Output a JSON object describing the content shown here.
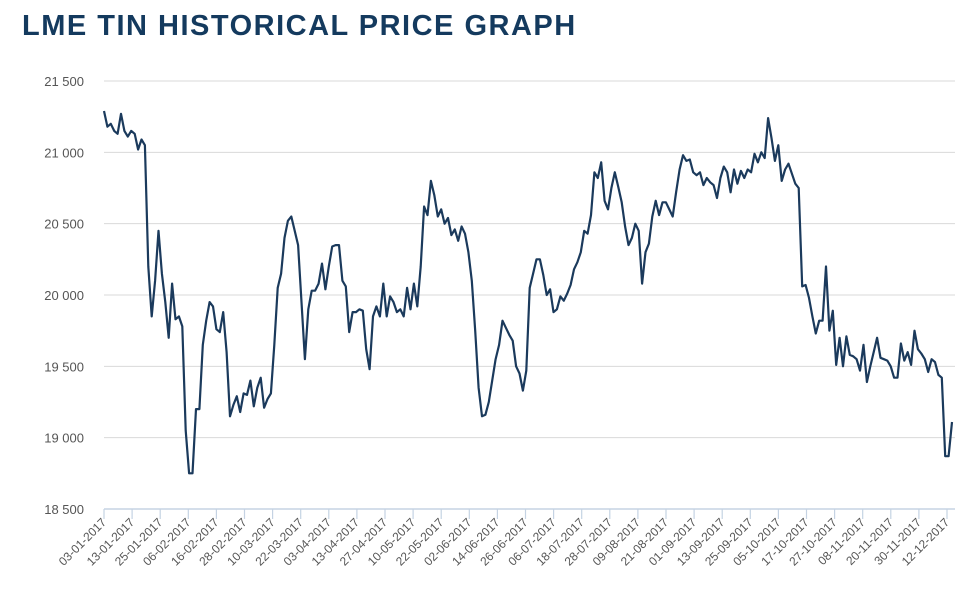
{
  "title": "LME TIN HISTORICAL PRICE GRAPH",
  "chart_data": {
    "type": "line",
    "title": "LME TIN HISTORICAL PRICE GRAPH",
    "xlabel": "",
    "ylabel": "",
    "ylim": [
      18500,
      21500
    ],
    "yticks": [
      18500,
      19000,
      19500,
      20000,
      20500,
      21000,
      21500
    ],
    "ytick_labels": [
      "18 500",
      "19 000",
      "19 500",
      "20 000",
      "20 500",
      "21 000",
      "21 500"
    ],
    "xtick_labels": [
      "03-01-2017",
      "13-01-2017",
      "25-01-2017",
      "06-02-2017",
      "16-02-2017",
      "28-02-2017",
      "10-03-2017",
      "22-03-2017",
      "03-04-2017",
      "13-04-2017",
      "27-04-2017",
      "10-05-2017",
      "22-05-2017",
      "02-06-2017",
      "14-06-2017",
      "26-06-2017",
      "06-07-2017",
      "18-07-2017",
      "28-07-2017",
      "09-08-2017",
      "21-08-2017",
      "01-09-2017",
      "13-09-2017",
      "25-09-2017",
      "05-10-2017",
      "17-10-2017",
      "27-10-2017",
      "08-11-2017",
      "20-11-2017",
      "30-11-2017",
      "12-12-2017"
    ],
    "grid": true,
    "legend": "none",
    "line_color": "#1b3a5c",
    "series": [
      {
        "name": "LME Tin",
        "values": [
          21290,
          21180,
          21200,
          21150,
          21130,
          21270,
          21150,
          21110,
          21150,
          21130,
          21020,
          21090,
          21050,
          20200,
          19850,
          20100,
          20450,
          20150,
          19950,
          19700,
          20080,
          19830,
          19850,
          19780,
          19050,
          18750,
          18750,
          19200,
          19200,
          19650,
          19820,
          19950,
          19920,
          19760,
          19740,
          19880,
          19600,
          19150,
          19230,
          19290,
          19180,
          19310,
          19300,
          19400,
          19220,
          19350,
          19420,
          19210,
          19270,
          19310,
          19650,
          20050,
          20150,
          20400,
          20520,
          20550,
          20450,
          20350,
          19950,
          19550,
          19900,
          20030,
          20030,
          20080,
          20220,
          20040,
          20200,
          20340,
          20350,
          20350,
          20100,
          20060,
          19740,
          19880,
          19880,
          19900,
          19890,
          19620,
          19480,
          19850,
          19920,
          19850,
          20080,
          19850,
          19990,
          19950,
          19880,
          19900,
          19850,
          20050,
          19900,
          20080,
          19920,
          20200,
          20620,
          20560,
          20800,
          20700,
          20550,
          20600,
          20500,
          20540,
          20420,
          20460,
          20380,
          20480,
          20430,
          20300,
          20100,
          19750,
          19350,
          19150,
          19160,
          19250,
          19400,
          19550,
          19650,
          19820,
          19770,
          19720,
          19680,
          19500,
          19450,
          19330,
          19470,
          20050,
          20150,
          20250,
          20250,
          20140,
          20000,
          20040,
          19880,
          19900,
          19990,
          19960,
          20010,
          20070,
          20180,
          20230,
          20300,
          20450,
          20430,
          20560,
          20860,
          20820,
          20930,
          20660,
          20600,
          20750,
          20860,
          20760,
          20650,
          20480,
          20350,
          20400,
          20500,
          20450,
          20080,
          20300,
          20360,
          20550,
          20660,
          20560,
          20650,
          20650,
          20600,
          20550,
          20720,
          20880,
          20980,
          20940,
          20950,
          20860,
          20840,
          20860,
          20770,
          20820,
          20790,
          20770,
          20680,
          20820,
          20900,
          20860,
          20720,
          20880,
          20780,
          20870,
          20820,
          20880,
          20860,
          20990,
          20930,
          21000,
          20960,
          21240,
          21100,
          20940,
          21050,
          20800,
          20880,
          20920,
          20850,
          20780,
          20750,
          20060,
          20070,
          19980,
          19850,
          19730,
          19820,
          19820,
          20200,
          19750,
          19890,
          19510,
          19700,
          19500,
          19710,
          19580,
          19570,
          19550,
          19470,
          19650,
          19390,
          19500,
          19600,
          19700,
          19560,
          19550,
          19540,
          19500,
          19420,
          19420,
          19660,
          19540,
          19600,
          19510,
          19750,
          19620,
          19590,
          19550,
          19460,
          19550,
          19530,
          19440,
          19420,
          18870,
          18870,
          19110
        ]
      }
    ]
  }
}
